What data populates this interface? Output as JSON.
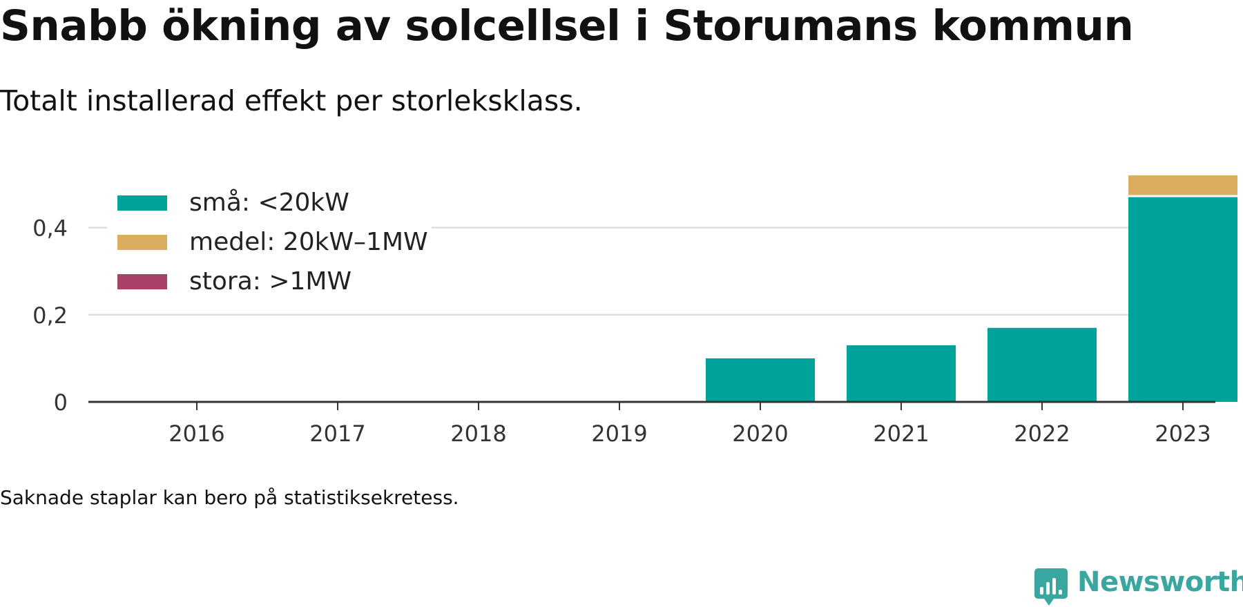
{
  "title": "Snabb ökning av solcellsel i Storumans kommun",
  "subtitle": "Totalt installerad effekt per storleksklass.",
  "note": "Saknade staplar kan bero på statistiksekretess.",
  "brand": "Newsworthy",
  "brand_color": "#3aa6a0",
  "chart_data": {
    "type": "bar",
    "stacked": true,
    "categories": [
      "2016",
      "2017",
      "2018",
      "2019",
      "2020",
      "2021",
      "2022",
      "2023"
    ],
    "series": [
      {
        "name": "små: <20kW",
        "color": "#00a39a",
        "values": [
          0,
          0,
          0,
          0,
          0.1,
          0.13,
          0.17,
          0.47
        ]
      },
      {
        "name": "medel: 20kW–1MW",
        "color": "#dbad5e",
        "values": [
          0,
          0,
          0,
          0,
          0,
          0,
          0,
          0.05
        ]
      },
      {
        "name": "stora: >1MW",
        "color": "#a8426a",
        "values": [
          0,
          0,
          0,
          0,
          0,
          0,
          0,
          0
        ]
      }
    ],
    "yticks": [
      "0",
      "0,2",
      "0,4"
    ],
    "ytick_values": [
      0,
      0.2,
      0.4
    ],
    "ylim": [
      0,
      0.55
    ],
    "grid": true,
    "legend_position": "top-left"
  }
}
